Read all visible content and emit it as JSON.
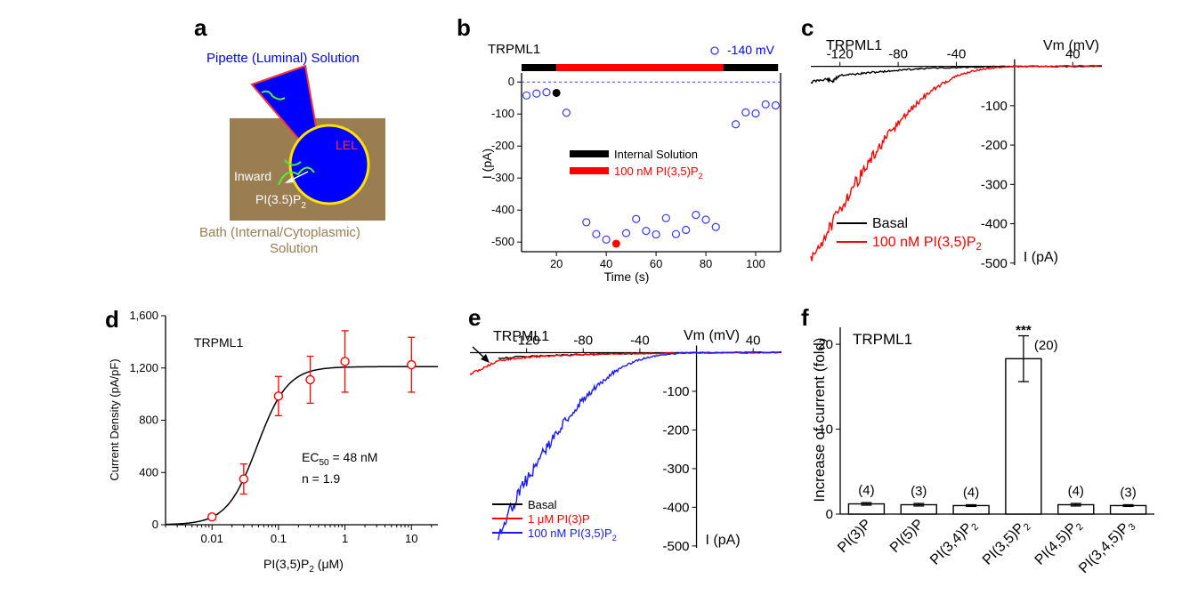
{
  "colors": {
    "black": "#000000",
    "red": "#ff0000",
    "blue": "#1a1aff",
    "brown": "#9b7d52",
    "bath_text": "#9b7d52",
    "lel_fill": "#0000ff",
    "lel_border": "#ffe100",
    "pipette_fill": "#0000ff",
    "pipette_border": "#ff3333",
    "circle_blue": "#3a3aff",
    "green": "#55ee33"
  },
  "panel_a": {
    "letter": "a",
    "pipette_label": "Pipette (Luminal) Solution",
    "lel_label": "LEL",
    "inward_label": "Inward",
    "pi_label": "PI(3.5)P",
    "pi_sub": "2",
    "bath_line1": "Bath (Internal/Cytoplasmic)",
    "bath_line2": "Solution"
  },
  "chart_data": [
    {
      "panel": "b",
      "type": "scatter",
      "title": "TRPML1",
      "legend_marker": "-140 mV",
      "xlabel": "Time (s)",
      "ylabel": "I (pA)",
      "xlim": [
        6,
        110
      ],
      "ylim": [
        -530,
        20
      ],
      "xticks": [
        20,
        40,
        60,
        80,
        100
      ],
      "yticks": [
        0,
        -100,
        -200,
        -300,
        -400,
        -500
      ],
      "bars": [
        {
          "name": "Internal Solution",
          "color": "#000000",
          "from": 6,
          "to": 20
        },
        {
          "name": "100 nM PI(3,5)P",
          "sub": "2",
          "color": "#ff0000",
          "from": 20,
          "to": 87
        },
        {
          "name": "",
          "color": "#000000",
          "from": 87,
          "to": 109
        }
      ],
      "legend": [
        {
          "label": "Internal Solution",
          "color": "#000000"
        },
        {
          "label": "100 nM PI(3,5)P",
          "sub": "2",
          "color": "#ff0000"
        }
      ],
      "points_x": [
        8,
        12,
        16,
        24,
        32,
        36,
        40,
        48,
        52,
        56,
        60,
        64,
        68,
        72,
        76,
        80,
        84,
        92,
        96,
        100,
        104,
        108
      ],
      "points_y": [
        -42,
        -36,
        -32,
        -96,
        -438,
        -475,
        -492,
        -472,
        -428,
        -465,
        -476,
        -425,
        -475,
        -462,
        -415,
        -430,
        -453,
        -132,
        -95,
        -98,
        -70,
        -73
      ],
      "filled_black": {
        "x": 20,
        "y": -34
      },
      "filled_red": {
        "x": 44,
        "y": -505
      }
    },
    {
      "panel": "c",
      "type": "line",
      "title": "TRPML1",
      "xlabel": "Vm (mV)",
      "ylabel": "I (pA)",
      "xlim": [
        -140,
        60
      ],
      "ylim": [
        -505,
        15
      ],
      "xticks": [
        -120,
        -80,
        -40,
        40
      ],
      "yticks": [
        -100,
        -200,
        -300,
        -400,
        -500
      ],
      "series": [
        {
          "name": "Basal",
          "color": "#000000",
          "x": [
            -140,
            -130,
            -125,
            -120,
            -110,
            -100,
            -90,
            -80,
            -70,
            -60,
            -40,
            -20,
            0,
            20,
            40,
            60
          ],
          "y": [
            -40,
            -32,
            -38,
            -22,
            -20,
            -16,
            -13,
            -10,
            -7,
            -5,
            -3,
            -1,
            0,
            0,
            0,
            1
          ]
        },
        {
          "name": "100 nM PI(3,5)P",
          "sub": "2",
          "color": "#ff0000",
          "x": [
            -140,
            -130,
            -120,
            -110,
            -100,
            -90,
            -80,
            -70,
            -60,
            -50,
            -40,
            -30,
            -20,
            -10,
            0,
            20,
            40,
            60
          ],
          "y": [
            -495,
            -430,
            -365,
            -300,
            -245,
            -190,
            -145,
            -105,
            -70,
            -45,
            -25,
            -13,
            -6,
            -2,
            0,
            0,
            1,
            2
          ]
        }
      ]
    },
    {
      "panel": "d",
      "type": "scatter",
      "title": "TRPML1",
      "xlabel": "PI(3,5)P",
      "xlabel_sub": "2",
      "xlabel_unit": " (μM)",
      "ylabel": "Current Density (pA/pF)",
      "xscale": "log",
      "xlim": [
        0.002,
        25
      ],
      "ylim": [
        0,
        1600
      ],
      "xticks": [
        0.01,
        0.1,
        1,
        10
      ],
      "xtick_labels": [
        "0.01",
        "0.1",
        "1",
        "10"
      ],
      "yticks": [
        0,
        400,
        800,
        1200,
        1600
      ],
      "ytick_labels": [
        "0",
        "400",
        "800",
        "1,200",
        "1,600"
      ],
      "x": [
        0.01,
        0.03,
        0.1,
        0.3,
        1,
        10
      ],
      "y": [
        60,
        350,
        985,
        1110,
        1250,
        1225
      ],
      "err": [
        15,
        115,
        150,
        180,
        235,
        210
      ],
      "fit": {
        "ec50": 0.048,
        "n": 1.9,
        "max": 1210
      },
      "ec50_label": "EC",
      "ec50_sub": "50",
      "ec50_value": " = 48 nM",
      "n_label": "n = 1.9"
    },
    {
      "panel": "e",
      "type": "line",
      "title": "TRPML1",
      "xlabel": "Vm (mV)",
      "ylabel": "I (pA)",
      "xlim": [
        -160,
        60
      ],
      "ylim": [
        -505,
        15
      ],
      "xticks": [
        -120,
        -80,
        -40,
        40
      ],
      "yticks": [
        -100,
        -200,
        -300,
        -400,
        -500
      ],
      "series": [
        {
          "name": "Basal",
          "color": "#000000",
          "x": [
            -140,
            -120,
            -100,
            -80,
            -60,
            -40,
            -20,
            0,
            20,
            40,
            60
          ],
          "y": [
            -14,
            -10,
            -7,
            -5,
            -3,
            -2,
            -1,
            0,
            0,
            0,
            1
          ]
        },
        {
          "name": "1 μM PI(3)P",
          "color": "#ff0000",
          "x": [
            -160,
            -150,
            -140,
            -130,
            -120,
            -110,
            -100,
            -80,
            -60,
            -40,
            -20,
            0,
            20,
            40,
            60
          ],
          "y": [
            -55,
            -40,
            -20,
            -16,
            -12,
            -10,
            -8,
            -5,
            -3,
            -2,
            -1,
            0,
            0,
            0,
            1
          ]
        },
        {
          "name": "100 nM PI(3,5)P",
          "sub": "2",
          "color": "#1a1aff",
          "x": [
            -140,
            -130,
            -120,
            -110,
            -100,
            -90,
            -80,
            -70,
            -60,
            -50,
            -40,
            -30,
            -20,
            -10,
            0,
            20,
            40,
            60
          ],
          "y": [
            -470,
            -395,
            -330,
            -270,
            -215,
            -165,
            -120,
            -85,
            -55,
            -32,
            -18,
            -9,
            -4,
            -1,
            0,
            0,
            1,
            2
          ]
        }
      ]
    },
    {
      "panel": "f",
      "type": "bar",
      "title": "TRPML1",
      "ylabel": "Increase of current (fold)",
      "ylim": [
        0,
        22
      ],
      "yticks": [
        0,
        10,
        20
      ],
      "categories": [
        {
          "main": "PI(3)P",
          "sub": ""
        },
        {
          "main": "PI(5)P",
          "sub": ""
        },
        {
          "main": "PI(3,4)P",
          "sub": "2"
        },
        {
          "main": "PI(3,5)P",
          "sub": "2"
        },
        {
          "main": "PI(4,5)P",
          "sub": "2"
        },
        {
          "main": "PI(3,4,5)P",
          "sub": "3"
        }
      ],
      "values": [
        1.2,
        1.1,
        1.0,
        18.3,
        1.1,
        1.0
      ],
      "err": [
        0.15,
        0.15,
        0.1,
        2.7,
        0.15,
        0.1
      ],
      "n_labels": [
        "(4)",
        "(3)",
        "(4)",
        "(20)",
        "(4)",
        "(3)"
      ],
      "significance": "***"
    }
  ],
  "panel_letters": [
    "b",
    "c",
    "d",
    "e",
    "f"
  ]
}
